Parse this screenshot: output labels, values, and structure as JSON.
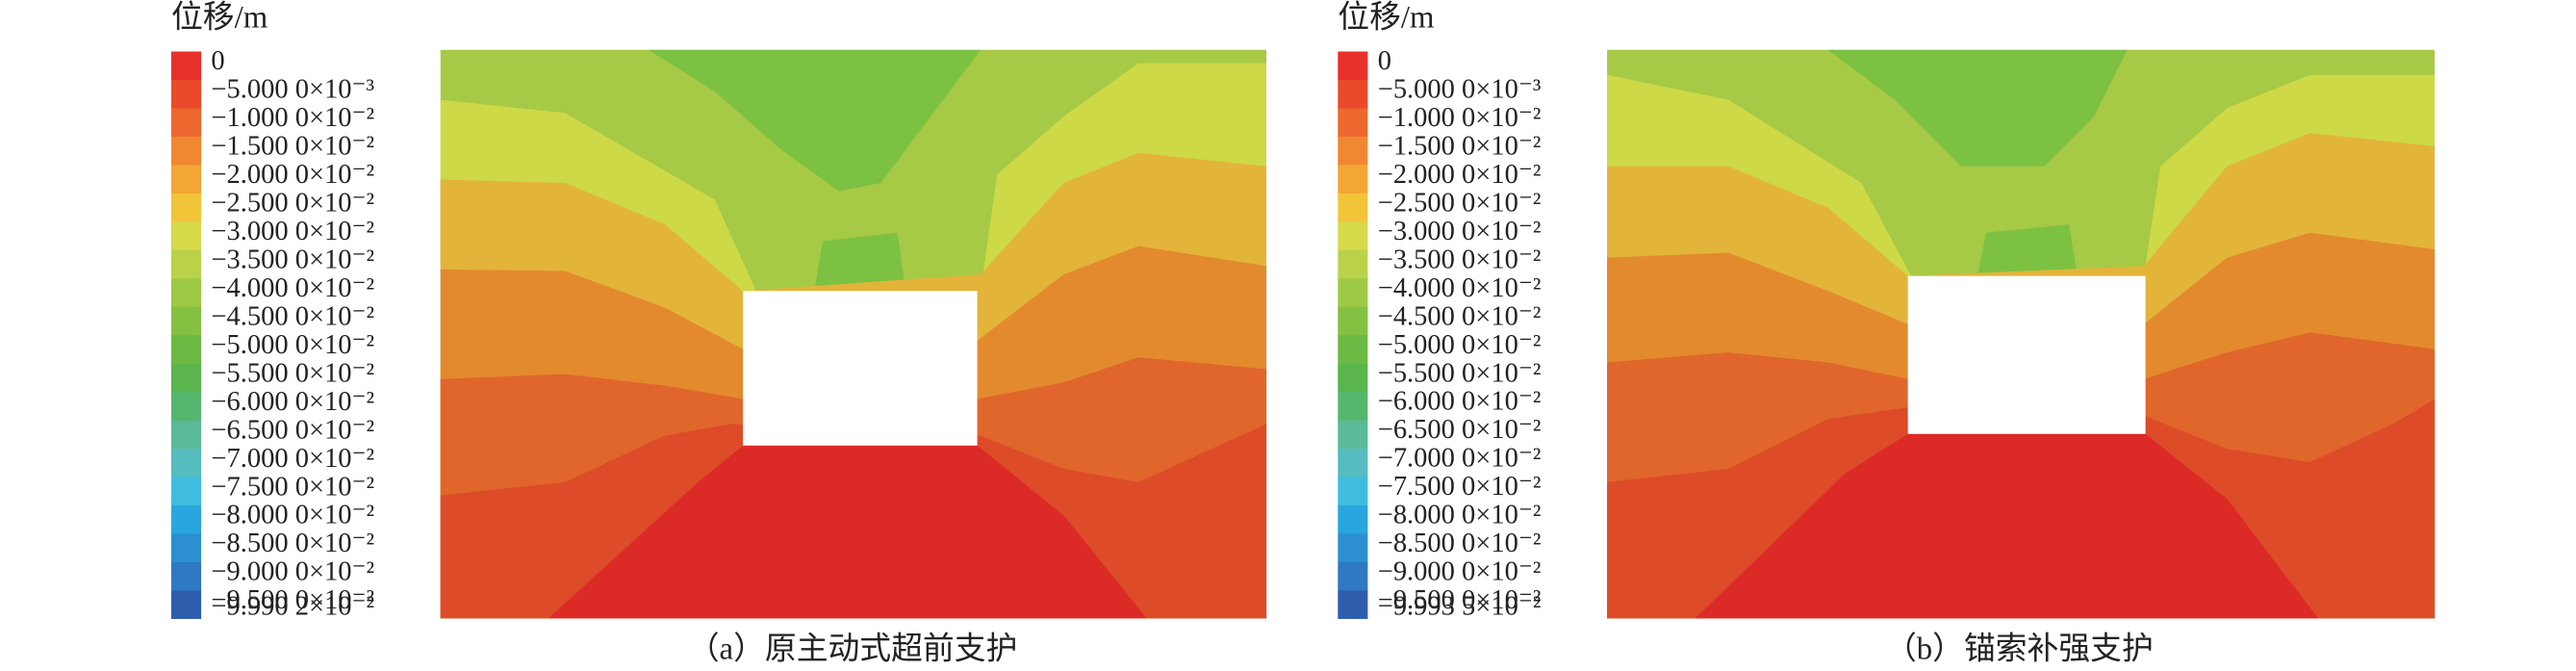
{
  "chart_data": [
    {
      "type": "contour",
      "colorbar_label": "位移/m",
      "caption": "（a）原主动式超前支护",
      "levels": [
        0,
        {
          "value": -0.005,
          "label": "−5.000 0×10⁻³"
        },
        {
          "value": -0.01,
          "label": "−1.000 0×10⁻²"
        },
        {
          "value": -0.015,
          "label": "−1.500 0×10⁻²"
        },
        {
          "value": -0.02,
          "label": "−2.000 0×10⁻²"
        },
        {
          "value": -0.025,
          "label": "−2.500 0×10⁻²"
        },
        {
          "value": -0.03,
          "label": "−3.000 0×10⁻²"
        },
        {
          "value": -0.035,
          "label": "−3.500 0×10⁻²"
        },
        {
          "value": -0.04,
          "label": "−4.000 0×10⁻²"
        },
        {
          "value": -0.045,
          "label": "−4.500 0×10⁻²"
        },
        {
          "value": -0.05,
          "label": "−5.000 0×10⁻²"
        },
        {
          "value": -0.055,
          "label": "−5.500 0×10⁻²"
        },
        {
          "value": -0.06,
          "label": "−6.000 0×10⁻²"
        },
        {
          "value": -0.065,
          "label": "−6.500 0×10⁻²"
        },
        {
          "value": -0.07,
          "label": "−7.000 0×10⁻²"
        },
        {
          "value": -0.075,
          "label": "−7.500 0×10⁻²"
        },
        {
          "value": -0.08,
          "label": "−8.000 0×10⁻²"
        },
        {
          "value": -0.085,
          "label": "−8.500 0×10⁻²"
        },
        {
          "value": -0.09,
          "label": "−9.000 0×10⁻²"
        },
        {
          "value": -0.095,
          "label": "−9.500 0×10⁻²"
        },
        {
          "value": -0.099902,
          "label": "−9.990 2×10⁻²"
        }
      ],
      "colors": [
        "#e8312a",
        "#ea4a2b",
        "#ec682e",
        "#f08831",
        "#f3a536",
        "#f2c43a",
        "#d6d94a",
        "#b9d24a",
        "#9dc944",
        "#84c142",
        "#6cb944",
        "#5ab54c",
        "#55b66e",
        "#59b998",
        "#55bcc0",
        "#3ebde0",
        "#28a6dd",
        "#2b8fd1",
        "#2f78c4",
        "#2e5dae"
      ]
    },
    {
      "type": "contour",
      "colorbar_label": "位移/m",
      "caption": "（b）锚索补强支护",
      "levels": [
        0,
        {
          "value": -0.005,
          "label": "−5.000 0×10⁻³"
        },
        {
          "value": -0.01,
          "label": "−1.000 0×10⁻²"
        },
        {
          "value": -0.015,
          "label": "−1.500 0×10⁻²"
        },
        {
          "value": -0.02,
          "label": "−2.000 0×10⁻²"
        },
        {
          "value": -0.025,
          "label": "−2.500 0×10⁻²"
        },
        {
          "value": -0.03,
          "label": "−3.000 0×10⁻²"
        },
        {
          "value": -0.035,
          "label": "−3.500 0×10⁻²"
        },
        {
          "value": -0.04,
          "label": "−4.000 0×10⁻²"
        },
        {
          "value": -0.045,
          "label": "−4.500 0×10⁻²"
        },
        {
          "value": -0.05,
          "label": "−5.000 0×10⁻²"
        },
        {
          "value": -0.055,
          "label": "−5.500 0×10⁻²"
        },
        {
          "value": -0.06,
          "label": "−6.000 0×10⁻²"
        },
        {
          "value": -0.065,
          "label": "−6.500 0×10⁻²"
        },
        {
          "value": -0.07,
          "label": "−7.000 0×10⁻²"
        },
        {
          "value": -0.075,
          "label": "−7.500 0×10⁻²"
        },
        {
          "value": -0.08,
          "label": "−8.000 0×10⁻²"
        },
        {
          "value": -0.085,
          "label": "−8.500 0×10⁻²"
        },
        {
          "value": -0.09,
          "label": "−9.000 0×10⁻²"
        },
        {
          "value": -0.095,
          "label": "−9.500 0×10⁻²"
        },
        {
          "value": -0.099935,
          "label": "−9.993 5×10⁻²"
        }
      ],
      "colors": [
        "#e8312a",
        "#ea4a2b",
        "#ec682e",
        "#f08831",
        "#f3a536",
        "#f2c43a",
        "#d6d94a",
        "#b9d24a",
        "#9dc944",
        "#84c142",
        "#6cb944",
        "#5ab54c",
        "#55b66e",
        "#59b998",
        "#55bcc0",
        "#3ebde0",
        "#28a6dd",
        "#2b8fd1",
        "#2f78c4",
        "#2e5dae"
      ]
    }
  ]
}
